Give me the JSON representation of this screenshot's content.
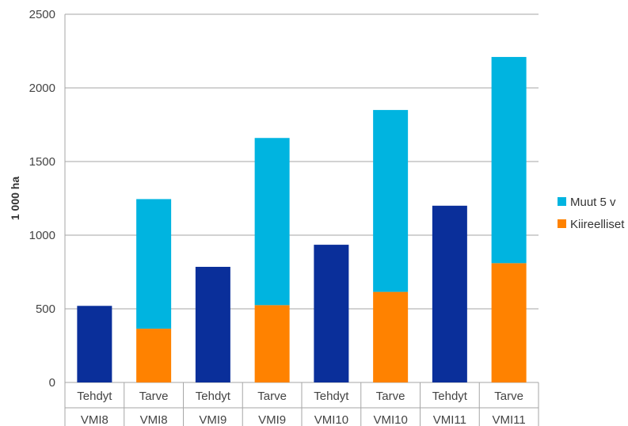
{
  "chart_data": {
    "type": "bar",
    "stacked": true,
    "ylabel": "1 000 ha",
    "ylim": [
      0,
      2500
    ],
    "yticks": [
      0,
      500,
      1000,
      1500,
      2000,
      2500
    ],
    "grid": true,
    "legend_position": "right",
    "categories": [
      {
        "type": "Tehdyt",
        "group": "VMI8"
      },
      {
        "type": "Tarve",
        "group": "VMI8"
      },
      {
        "type": "Tehdyt",
        "group": "VMI9"
      },
      {
        "type": "Tarve",
        "group": "VMI9"
      },
      {
        "type": "Tehdyt",
        "group": "VMI10"
      },
      {
        "type": "Tarve",
        "group": "VMI10"
      },
      {
        "type": "Tehdyt",
        "group": "VMI11"
      },
      {
        "type": "Tarve",
        "group": "VMI11"
      }
    ],
    "series": [
      {
        "key": "tehdyt",
        "color": "#0a2f9a",
        "values": [
          520,
          null,
          785,
          null,
          935,
          null,
          1200,
          null
        ]
      },
      {
        "key": "kiireelliset",
        "name": "Kiireelliset",
        "color": "#ff8200",
        "values": [
          null,
          365,
          null,
          525,
          null,
          615,
          null,
          810
        ]
      },
      {
        "key": "muut",
        "name": "Muut 5 v",
        "color": "#00b4e0",
        "values": [
          null,
          880,
          null,
          1135,
          null,
          1235,
          null,
          1400
        ]
      }
    ],
    "legend": [
      {
        "label": "Muut 5 v",
        "color": "#00b4e0"
      },
      {
        "label": "Kiireelliset",
        "color": "#ff8200"
      }
    ]
  }
}
